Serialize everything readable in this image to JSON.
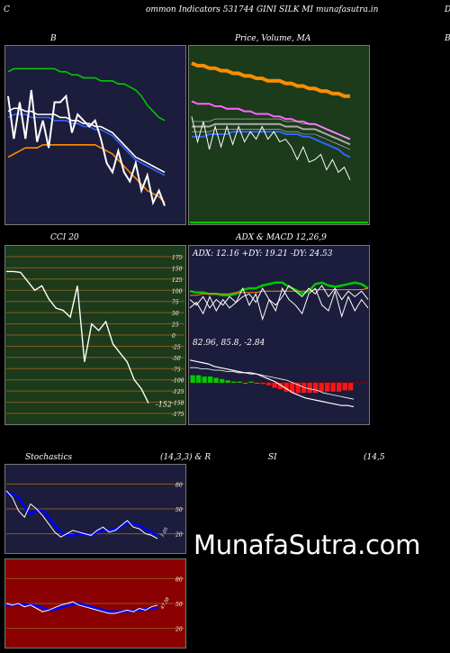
{
  "header": {
    "title": "ommon  Indicators 531744  GINI SILK MI munafasutra.in",
    "left_c": "C",
    "right_d": "D"
  },
  "watermark": "MunafaSutra.com",
  "colors": {
    "navy": "#1c1c3c",
    "green_bg": "#1b3b1b",
    "maroon": "#8b0000",
    "grid_orange": "#8b5a1e"
  },
  "chart_data": [
    {
      "id": "bollinger",
      "type": "line",
      "title": "B",
      "bg": "#1c1c3c",
      "series": [
        {
          "color": "#00c800",
          "values": [
            88,
            89,
            89,
            89,
            89,
            89,
            89,
            89,
            89,
            88,
            88,
            87,
            87,
            86,
            86,
            86,
            85,
            85,
            85,
            84,
            84,
            83,
            82,
            80,
            77,
            75,
            73,
            72
          ]
        },
        {
          "color": "#ffffff",
          "values": [
            75,
            76,
            76,
            75,
            75,
            74,
            74,
            74,
            74,
            73,
            73,
            72,
            72,
            71,
            71,
            70,
            70,
            69,
            68,
            66,
            64,
            62,
            60,
            59,
            58,
            57,
            56,
            55
          ]
        },
        {
          "color": "#3264ff",
          "values": [
            73,
            74,
            74,
            74,
            73,
            73,
            73,
            73,
            72,
            72,
            72,
            71,
            71,
            70,
            70,
            69,
            69,
            68,
            67,
            65,
            63,
            61,
            59,
            58,
            57,
            56,
            55,
            54
          ]
        },
        {
          "color": "#ff8c00",
          "values": [
            60,
            61,
            62,
            63,
            63,
            63,
            64,
            64,
            64,
            64,
            64,
            64,
            64,
            64,
            64,
            64,
            63,
            62,
            61,
            59,
            57,
            55,
            53,
            51,
            49,
            48,
            47,
            45
          ]
        },
        {
          "color": "#ffffff",
          "values": [
            80,
            66,
            78,
            66,
            82,
            65,
            72,
            63,
            78,
            78,
            80,
            68,
            74,
            72,
            70,
            72,
            66,
            58,
            55,
            62,
            55,
            52,
            58,
            49,
            54,
            45,
            49,
            44
          ]
        }
      ],
      "ylim": [
        40,
        95
      ]
    },
    {
      "id": "price",
      "type": "line",
      "title": "Price,  Volume,  MA",
      "bg": "#1b3b1b",
      "series": [
        {
          "color": "#ff8c00",
          "values": [
            91,
            90,
            90,
            89,
            89,
            88,
            88,
            87,
            87,
            86,
            86,
            85,
            85,
            84,
            84,
            84,
            83,
            83,
            82,
            82,
            81,
            81,
            80,
            80,
            79,
            79,
            78,
            78
          ]
        },
        {
          "color": "#ff64ff",
          "values": [
            76,
            75,
            75,
            75,
            74,
            74,
            73,
            73,
            73,
            72,
            72,
            71,
            71,
            71,
            70,
            70,
            69,
            69,
            68,
            68,
            67,
            67,
            66,
            65,
            64,
            63,
            62,
            61
          ]
        },
        {
          "color": "#aaaaaa",
          "values": [
            66,
            66,
            66,
            66,
            67,
            67,
            67,
            67,
            67,
            67,
            67,
            67,
            67,
            67,
            67,
            67,
            66,
            66,
            66,
            65,
            65,
            65,
            64,
            63,
            62,
            61,
            60,
            59
          ]
        },
        {
          "color": "#3264ff",
          "values": [
            62,
            62,
            62,
            63,
            63,
            63,
            63,
            64,
            64,
            64,
            64,
            64,
            64,
            64,
            64,
            64,
            63,
            63,
            63,
            62,
            62,
            61,
            60,
            59,
            58,
            57,
            55,
            54
          ]
        },
        {
          "color": "#ffffff",
          "values": [
            70,
            60,
            68,
            57,
            66,
            58,
            66,
            59,
            66,
            60,
            64,
            61,
            66,
            61,
            64,
            60,
            61,
            58,
            53,
            58,
            52,
            53,
            55,
            49,
            53,
            48,
            50,
            45
          ]
        }
      ],
      "ylim": [
        30,
        96
      ]
    },
    {
      "id": "cci",
      "type": "line",
      "title": "CCI 20",
      "bg": "#1b3b1b",
      "ticks": [
        175,
        150,
        125,
        100,
        75,
        50,
        25,
        0,
        -25,
        -50,
        -75,
        -100,
        -125,
        -150,
        -175
      ],
      "values": [
        142,
        142,
        140,
        120,
        100,
        110,
        80,
        60,
        55,
        40,
        110,
        -60,
        25,
        10,
        30,
        -20,
        -40,
        -60,
        -100,
        -120,
        -152
      ],
      "last_label": "-152",
      "ylim": [
        -185,
        185
      ]
    },
    {
      "id": "adx",
      "type": "line",
      "title": "ADX  & MACD 12,26,9",
      "bg": "#1c1c3c",
      "readout": "ADX: 12.16  +DY: 19.21 -DY: 24.53",
      "series": [
        {
          "color": "#00c800",
          "values": [
            50,
            49,
            49,
            48,
            48,
            47,
            47,
            48,
            51,
            52,
            52,
            54,
            55,
            56,
            56,
            53,
            51,
            48,
            50,
            55,
            56,
            54,
            53,
            54,
            55,
            56,
            55,
            52
          ]
        },
        {
          "color": "#ff8c00",
          "values": [
            47,
            47,
            48,
            48,
            48,
            48,
            48,
            49,
            49,
            49,
            49,
            50,
            50,
            50,
            50,
            50,
            50,
            50,
            50,
            51,
            51,
            51,
            51,
            51,
            51,
            51,
            51,
            52
          ]
        },
        {
          "color": "#ffffff",
          "values": [
            38,
            42,
            34,
            46,
            36,
            44,
            38,
            42,
            52,
            40,
            48,
            30,
            44,
            36,
            52,
            44,
            40,
            34,
            48,
            52,
            40,
            36,
            50,
            32,
            46,
            36,
            44,
            38
          ]
        },
        {
          "color": "#ffffff",
          "values": [
            44,
            40,
            46,
            38,
            44,
            40,
            46,
            42,
            46,
            48,
            42,
            52,
            44,
            40,
            46,
            54,
            50,
            46,
            52,
            48,
            54,
            46,
            52,
            44,
            50,
            46,
            50,
            44
          ]
        }
      ],
      "ylim": [
        20,
        70
      ]
    },
    {
      "id": "macd",
      "type": "bar",
      "bg": "#1c1c3c",
      "readout": "82.96,  85.8,  -2.84",
      "line_macd": [
        18,
        17,
        16,
        15,
        13,
        12,
        11,
        10,
        9,
        8,
        8,
        7,
        5,
        3,
        1,
        -2,
        -5,
        -8,
        -10,
        -12,
        -13,
        -14,
        -15,
        -16,
        -17,
        -18,
        -18,
        -19
      ],
      "line_signal": [
        12,
        12,
        11,
        11,
        10,
        10,
        9,
        9,
        8,
        8,
        7,
        7,
        6,
        5,
        4,
        3,
        2,
        0,
        -2,
        -4,
        -5,
        -6,
        -8,
        -9,
        -10,
        -11,
        -12,
        -13
      ],
      "histogram": [
        6,
        6,
        5,
        5,
        4,
        3,
        2,
        1,
        1,
        0,
        1,
        0,
        -1,
        -2,
        -4,
        -5,
        -7,
        -8,
        -8,
        -8,
        -8,
        -8,
        -7,
        -7,
        -7,
        -7,
        -6,
        -6
      ],
      "ylim": [
        -30,
        25
      ]
    },
    {
      "id": "stochastics",
      "type": "line",
      "title": "Stochastics",
      "params": "(14,3,3) & R",
      "bg": "#1c1c3c",
      "ticks": [
        80,
        50,
        20
      ],
      "last_label": "1.05",
      "series": [
        {
          "color": "#0000ff",
          "values": [
            68,
            68,
            64,
            52,
            44,
            48,
            48,
            40,
            30,
            22,
            18,
            18,
            20,
            20,
            18,
            22,
            24,
            24,
            26,
            28,
            34,
            32,
            30,
            26,
            22,
            18
          ]
        },
        {
          "color": "#ffffff",
          "values": [
            72,
            64,
            48,
            40,
            56,
            50,
            42,
            32,
            22,
            16,
            20,
            24,
            22,
            20,
            18,
            24,
            28,
            22,
            24,
            30,
            36,
            28,
            26,
            20,
            18,
            14
          ]
        }
      ],
      "ylim": [
        0,
        100
      ]
    },
    {
      "id": "williams",
      "type": "line",
      "bg": "#8b0000",
      "ticks": [
        80,
        50,
        20
      ],
      "last_label": "47.58",
      "series": [
        {
          "color": "#0000ff",
          "values": [
            48,
            48,
            49,
            49,
            48,
            47,
            45,
            42,
            43,
            45,
            47,
            49,
            50,
            48,
            46,
            44,
            42,
            40,
            40,
            40,
            41,
            41,
            42,
            43,
            44,
            45
          ]
        },
        {
          "color": "#ffffff",
          "values": [
            50,
            48,
            50,
            46,
            48,
            44,
            40,
            42,
            45,
            48,
            50,
            52,
            48,
            46,
            44,
            42,
            40,
            38,
            38,
            40,
            42,
            40,
            44,
            42,
            46,
            48
          ]
        }
      ],
      "ylim": [
        0,
        100
      ]
    },
    {
      "id": "rsi",
      "type": "line",
      "title": "SI",
      "params": "(14,5",
      "bg": "#000000"
    }
  ]
}
